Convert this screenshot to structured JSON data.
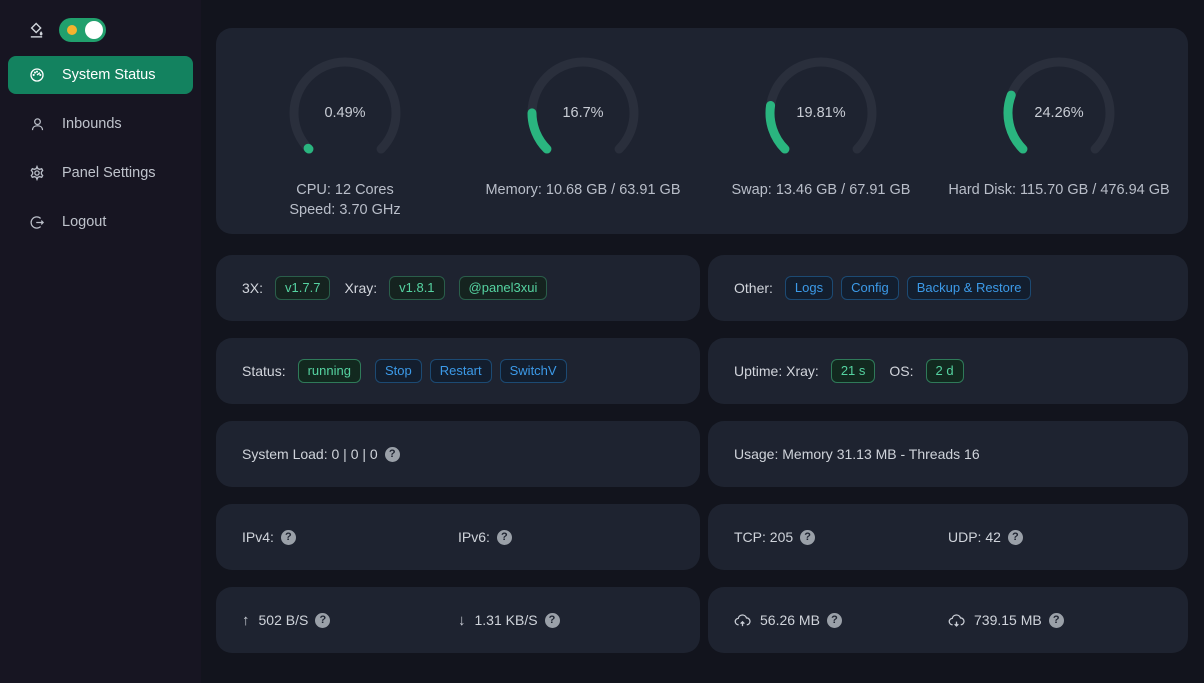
{
  "colors": {
    "accent_green": "#2ab57f",
    "gauge_track": "#2a2f3c",
    "menu_active_green": "#13825f",
    "tag_green_text": "#55d3a1",
    "tag_blue_text": "#3c9ae8",
    "toggle_track": "#21a06d",
    "sun_yellow": "#f5b32e",
    "sidebar_bg": "#171522",
    "card_bg": "#1e2330",
    "page_bg": "#12141d"
  },
  "sidebar": {
    "items": [
      {
        "label": "System Status",
        "active": true
      },
      {
        "label": "Inbounds",
        "active": false
      },
      {
        "label": "Panel Settings",
        "active": false
      },
      {
        "label": "Logout",
        "active": false
      }
    ]
  },
  "chart_data": {
    "type": "gauge-set",
    "gauges": [
      {
        "percent": "0.49%",
        "value": 0.49,
        "line1": "CPU: 12 Cores",
        "line2": "Speed: 3.70 GHz"
      },
      {
        "percent": "16.7%",
        "value": 16.7,
        "line1": "Memory: 10.68 GB / 63.91 GB",
        "line2": ""
      },
      {
        "percent": "19.81%",
        "value": 19.81,
        "line1": "Swap: 13.46 GB / 67.91 GB",
        "line2": ""
      },
      {
        "percent": "24.26%",
        "value": 24.26,
        "line1": "Hard Disk: 115.70 GB / 476.94 GB",
        "line2": ""
      }
    ]
  },
  "gauges": [
    {
      "percent": "0.49%",
      "value": 0.49,
      "line1": "CPU: 12 Cores",
      "line2": "Speed: 3.70 GHz"
    },
    {
      "percent": "16.7%",
      "value": 16.7,
      "line1": "Memory: 10.68 GB / 63.91 GB",
      "line2": ""
    },
    {
      "percent": "19.81%",
      "value": 19.81,
      "line1": "Swap: 13.46 GB / 67.91 GB",
      "line2": ""
    },
    {
      "percent": "24.26%",
      "value": 24.26,
      "line1": "Hard Disk: 115.70 GB / 476.94 GB",
      "line2": ""
    }
  ],
  "cards": {
    "version": {
      "label_3x": "3X:",
      "tag_3x": "v1.7.7",
      "label_xray": "Xray:",
      "tag_xray": "v1.8.1",
      "telegram": "@panel3xui"
    },
    "other": {
      "label": "Other:",
      "buttons": [
        "Logs",
        "Config",
        "Backup & Restore"
      ]
    },
    "status": {
      "label": "Status:",
      "state": "running",
      "actions": [
        "Stop",
        "Restart",
        "SwitchV"
      ]
    },
    "uptime": {
      "label": "Uptime: Xray:",
      "xray": "21 s",
      "os_label": "OS:",
      "os": "2 d"
    },
    "load": {
      "text": "System Load: 0 | 0 | 0"
    },
    "usage": {
      "text": "Usage: Memory 31.13 MB - Threads 16"
    },
    "ip": {
      "ipv4_label": "IPv4:",
      "ipv6_label": "IPv6:"
    },
    "connections": {
      "tcp": "TCP: 205",
      "udp": "UDP: 42"
    },
    "speed": {
      "up": "502 B/S",
      "down": "1.31 KB/S",
      "up_arrow": "↑",
      "down_arrow": "↓"
    },
    "traffic": {
      "sent": "56.26 MB",
      "received": "739.15 MB"
    }
  }
}
